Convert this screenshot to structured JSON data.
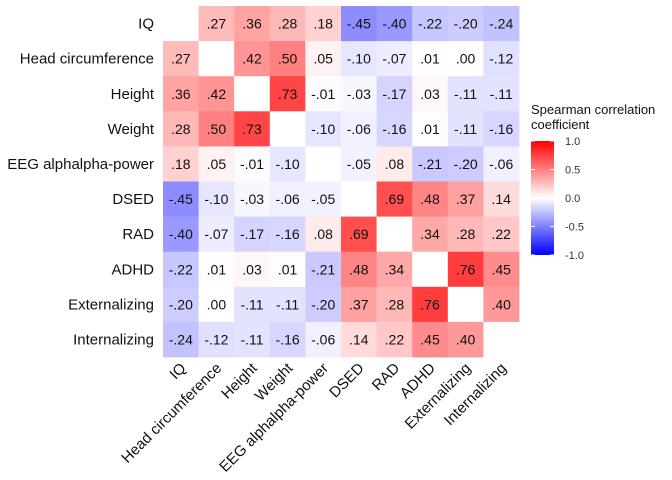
{
  "chart_data": {
    "type": "heatmap",
    "title": "",
    "xlabel": "",
    "ylabel": "",
    "variables": [
      "IQ",
      "Head circumference",
      "Height",
      "Weight",
      "EEG alphalpha-power",
      "DSED",
      "RAD",
      "ADHD",
      "Externalizing",
      "Internalizing"
    ],
    "matrix": [
      [
        null,
        0.27,
        0.36,
        0.28,
        0.18,
        -0.45,
        -0.4,
        -0.22,
        -0.2,
        -0.24
      ],
      [
        0.27,
        null,
        0.42,
        0.5,
        0.05,
        -0.1,
        -0.07,
        0.01,
        0.0,
        -0.12
      ],
      [
        0.36,
        0.42,
        null,
        0.73,
        -0.01,
        -0.03,
        -0.17,
        0.03,
        -0.11,
        -0.11
      ],
      [
        0.28,
        0.5,
        0.73,
        null,
        -0.1,
        -0.06,
        -0.16,
        0.01,
        -0.11,
        -0.16
      ],
      [
        0.18,
        0.05,
        -0.01,
        -0.1,
        null,
        -0.05,
        0.08,
        -0.21,
        -0.2,
        -0.06
      ],
      [
        -0.45,
        -0.1,
        -0.03,
        -0.06,
        -0.05,
        null,
        0.69,
        0.48,
        0.37,
        0.14
      ],
      [
        -0.4,
        -0.07,
        -0.17,
        -0.16,
        0.08,
        0.69,
        null,
        0.34,
        0.28,
        0.22
      ],
      [
        -0.22,
        0.01,
        0.03,
        0.01,
        -0.21,
        0.48,
        0.34,
        null,
        0.76,
        0.45
      ],
      [
        -0.2,
        0.0,
        -0.11,
        -0.11,
        -0.2,
        0.37,
        0.28,
        0.76,
        null,
        0.4
      ],
      [
        -0.24,
        -0.12,
        -0.11,
        -0.16,
        -0.06,
        0.14,
        0.22,
        0.45,
        0.4,
        null
      ]
    ],
    "cell_labels": [
      [
        "",
        ".27",
        ".36",
        ".28",
        ".18",
        "-.45",
        "-.40",
        "-.22",
        "-.20",
        "-.24"
      ],
      [
        ".27",
        "",
        ".42",
        ".50",
        ".05",
        "-.10",
        "-.07",
        ".01",
        ".00",
        "-.12"
      ],
      [
        ".36",
        ".42",
        "",
        ".73",
        "-.01",
        "-.03",
        "-.17",
        ".03",
        "-.11",
        "-.11"
      ],
      [
        ".28",
        ".50",
        ".73",
        "",
        "-.10",
        "-.06",
        "-.16",
        ".01",
        "-.11",
        "-.16"
      ],
      [
        ".18",
        ".05",
        "-.01",
        "-.10",
        "",
        "-.05",
        ".08",
        "-.21",
        "-.20",
        "-.06"
      ],
      [
        "-.45",
        "-.10",
        "-.03",
        "-.06",
        "-.05",
        "",
        ".69",
        ".48",
        ".37",
        ".14"
      ],
      [
        "-.40",
        "-.07",
        "-.17",
        "-.16",
        ".08",
        ".69",
        "",
        ".34",
        ".28",
        ".22"
      ],
      [
        "-.22",
        ".01",
        ".03",
        ".01",
        "-.21",
        ".48",
        ".34",
        "",
        ".76",
        ".45"
      ],
      [
        "-.20",
        ".00",
        "-.11",
        "-.11",
        "-.20",
        ".37",
        ".28",
        ".76",
        "",
        ".40"
      ],
      [
        "-.24",
        "-.12",
        "-.11",
        "-.16",
        "-.06",
        ".14",
        ".22",
        ".45",
        ".40",
        ""
      ]
    ],
    "color_scale": {
      "low": "#0000ff",
      "mid": "#ffffff",
      "high": "#ff0000",
      "limits": [
        -1.0,
        1.0
      ]
    },
    "legend": {
      "title_lines": [
        "Spearman correlation",
        "coefficient"
      ],
      "ticks": [
        1.0,
        0.5,
        0.0,
        -0.5,
        -1.0
      ],
      "tick_labels": [
        "1.0",
        "0.5",
        "0.0",
        "-0.5",
        "-1.0"
      ],
      "placement": "right"
    }
  }
}
